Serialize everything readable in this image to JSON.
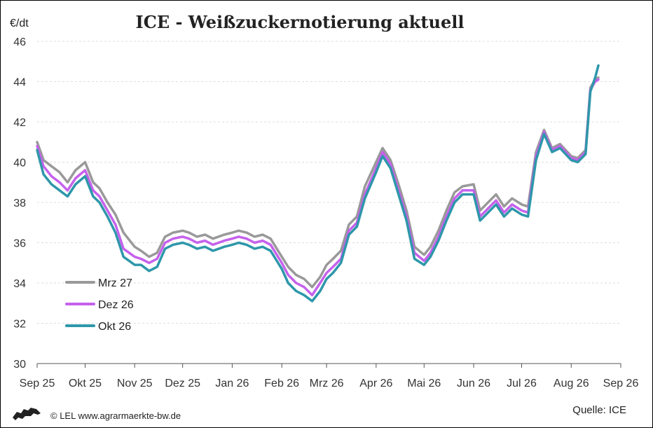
{
  "chart_data": {
    "type": "line",
    "title": "ICE - Weißzuckernotierung aktuell",
    "ylabel": "€/dt",
    "xlabel": "",
    "ylim": [
      30,
      46
    ],
    "yticks": [
      30,
      32,
      34,
      36,
      38,
      40,
      42,
      44,
      46
    ],
    "grid": true,
    "legend_position": "bottom-left",
    "x_tick_labels": [
      "Sep 25",
      "Okt 25",
      "Nov 25",
      "Dez 25",
      "Jan 26",
      "Feb 26",
      "Mrz 26",
      "Apr 26",
      "Mai 26",
      "Jun 26",
      "Jul 26",
      "Aug 26",
      "Sep 26"
    ],
    "x": [
      "2025-09-01",
      "2025-09-05",
      "2025-09-10",
      "2025-09-15",
      "2025-09-20",
      "2025-09-25",
      "2025-10-01",
      "2025-10-06",
      "2025-10-10",
      "2025-10-15",
      "2025-10-20",
      "2025-10-25",
      "2025-11-01",
      "2025-11-05",
      "2025-11-10",
      "2025-11-15",
      "2025-11-20",
      "2025-11-25",
      "2025-12-01",
      "2025-12-05",
      "2025-12-10",
      "2025-12-15",
      "2025-12-20",
      "2025-12-27",
      "2026-01-01",
      "2026-01-05",
      "2026-01-10",
      "2026-01-15",
      "2026-01-20",
      "2026-01-25",
      "2026-02-01",
      "2026-02-05",
      "2026-02-10",
      "2026-02-15",
      "2026-02-20",
      "2026-02-25",
      "2026-03-01",
      "2026-03-05",
      "2026-03-10",
      "2026-03-15",
      "2026-03-20",
      "2026-03-25",
      "2026-04-01",
      "2026-04-05",
      "2026-04-10",
      "2026-04-15",
      "2026-04-20",
      "2026-04-25",
      "2026-05-01",
      "2026-05-05",
      "2026-05-10",
      "2026-05-15",
      "2026-05-20",
      "2026-05-25",
      "2026-06-01",
      "2026-06-05",
      "2026-06-10",
      "2026-06-15",
      "2026-06-20",
      "2026-06-25",
      "2026-07-01",
      "2026-07-05",
      "2026-07-10",
      "2026-07-15",
      "2026-07-20",
      "2026-07-25",
      "2026-08-01",
      "2026-08-05",
      "2026-08-10",
      "2026-08-13",
      "2026-08-16",
      "2026-08-18"
    ],
    "series": [
      {
        "name": "Mrz 27",
        "color": "#999999",
        "values": [
          41.0,
          40.1,
          39.8,
          39.5,
          39.0,
          39.6,
          40.0,
          39.0,
          38.7,
          38.0,
          37.4,
          36.5,
          35.8,
          35.6,
          35.3,
          35.5,
          36.3,
          36.5,
          36.6,
          36.5,
          36.3,
          36.4,
          36.2,
          36.4,
          36.5,
          36.6,
          36.5,
          36.3,
          36.4,
          36.2,
          35.3,
          34.8,
          34.4,
          34.2,
          33.8,
          34.3,
          34.9,
          35.2,
          35.6,
          36.9,
          37.3,
          38.8,
          40.0,
          40.7,
          40.1,
          38.9,
          37.6,
          35.8,
          35.4,
          35.8,
          36.6,
          37.6,
          38.5,
          38.8,
          38.9,
          37.6,
          38.0,
          38.4,
          37.8,
          38.2,
          37.9,
          37.8,
          40.5,
          41.6,
          40.7,
          40.9,
          40.3,
          40.2,
          40.6,
          43.7,
          44.1,
          44.2
        ]
      },
      {
        "name": "Dez 26",
        "color": "#c561ec",
        "values": [
          40.8,
          39.8,
          39.3,
          39.0,
          38.6,
          39.2,
          39.6,
          38.6,
          38.3,
          37.6,
          36.9,
          35.7,
          35.3,
          35.2,
          35.0,
          35.2,
          36.0,
          36.2,
          36.3,
          36.2,
          36.0,
          36.1,
          35.9,
          36.1,
          36.2,
          36.3,
          36.2,
          36.0,
          36.1,
          35.9,
          35.0,
          34.4,
          34.0,
          33.8,
          33.4,
          34.0,
          34.5,
          34.8,
          35.2,
          36.6,
          37.0,
          38.4,
          39.7,
          40.5,
          39.9,
          38.6,
          37.3,
          35.5,
          35.1,
          35.5,
          36.3,
          37.3,
          38.2,
          38.6,
          38.6,
          37.3,
          37.7,
          38.1,
          37.5,
          37.9,
          37.6,
          37.5,
          40.3,
          41.5,
          40.6,
          40.8,
          40.2,
          40.1,
          40.5,
          43.6,
          44.0,
          44.1
        ]
      },
      {
        "name": "Okt 26",
        "color": "#2e97aa",
        "values": [
          40.6,
          39.4,
          38.9,
          38.6,
          38.3,
          38.9,
          39.3,
          38.3,
          38.0,
          37.3,
          36.5,
          35.3,
          34.9,
          34.9,
          34.6,
          34.8,
          35.7,
          35.9,
          36.0,
          35.9,
          35.7,
          35.8,
          35.6,
          35.8,
          35.9,
          36.0,
          35.9,
          35.7,
          35.8,
          35.6,
          34.7,
          34.0,
          33.6,
          33.4,
          33.1,
          33.6,
          34.2,
          34.5,
          35.0,
          36.4,
          36.8,
          38.2,
          39.5,
          40.3,
          39.7,
          38.4,
          37.1,
          35.2,
          34.9,
          35.3,
          36.1,
          37.1,
          38.0,
          38.4,
          38.4,
          37.1,
          37.5,
          37.9,
          37.3,
          37.7,
          37.4,
          37.3,
          40.1,
          41.4,
          40.5,
          40.7,
          40.1,
          40.0,
          40.4,
          43.5,
          44.2,
          44.8
        ]
      }
    ]
  },
  "footer": {
    "credit": "© LEL www.agrarmaerkte-bw.de",
    "source": "Quelle: ICE",
    "logo_icon": "lion-logo-icon"
  }
}
